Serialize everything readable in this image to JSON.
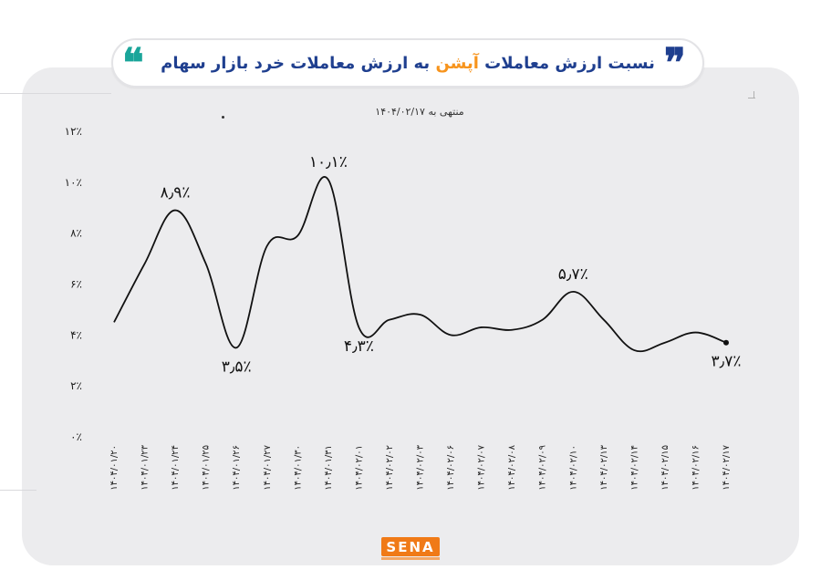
{
  "header": {
    "title_part1": "نسبت ارزش معاملات ",
    "title_highlight": "آپشن",
    "title_part2": " به ارزش معاملات خرد بازار سهام",
    "quote_right": "❞",
    "quote_left": "❝",
    "colors": {
      "title": "#1f3f8f",
      "highlight": "#f7941d",
      "quote_right": "#1f3f8f",
      "quote_left": "#1aa59a"
    }
  },
  "subtitle": "منتهی به ۱۴۰۴/۰۲/۱۷",
  "logo": {
    "text": "SENA",
    "color": "#f07a17"
  },
  "chart_data": {
    "type": "line",
    "x": [
      "۱۴۰۴/۰۱/۲۰",
      "۱۴۰۴/۰۱/۲۳",
      "۱۴۰۴/۰۱/۲۴",
      "۱۴۰۴/۰۱/۲۵",
      "۱۴۰۴/۰۱/۲۶",
      "۱۴۰۴/۰۱/۲۷",
      "۱۴۰۴/۰۱/۳۰",
      "۱۴۰۴/۰۱/۳۱",
      "۱۴۰۴/۰۲/۰۱",
      "۱۴۰۴/۰۲/۰۲",
      "۱۴۰۴/۰۲/۰۳",
      "۱۴۰۴/۰۲/۰۶",
      "۱۴۰۴/۰۲/۰۷",
      "۱۴۰۴/۰۲/۰۸",
      "۱۴۰۴/۰۲/۰۹",
      "۱۴۰۴/۰۲/۱۰",
      "۱۴۰۴/۰۲/۱۳",
      "۱۴۰۴/۰۲/۱۴",
      "۱۴۰۴/۰۲/۱۵",
      "۱۴۰۴/۰۲/۱۶",
      "۱۴۰۴/۰۲/۱۷"
    ],
    "series": [
      {
        "values": [
          4.5,
          6.8,
          8.9,
          6.8,
          3.5,
          7.5,
          7.9,
          10.1,
          4.3,
          4.6,
          4.8,
          4.0,
          4.3,
          4.2,
          4.6,
          5.7,
          4.6,
          3.4,
          3.7,
          4.1,
          3.7
        ]
      }
    ],
    "yticks": [
      "۰٪",
      "۲٪",
      "۴٪",
      "۶٪",
      "۸٪",
      "۱۰٪",
      "۱۲٪"
    ],
    "ylim": [
      0,
      12
    ],
    "annotations": [
      {
        "index": 2,
        "text": "۸٫۹٪",
        "pos": "above"
      },
      {
        "index": 4,
        "text": "۳٫۵٪",
        "pos": "below"
      },
      {
        "index": 7,
        "text": "۱۰٫۱٪",
        "pos": "above"
      },
      {
        "index": 8,
        "text": "۴٫۳٪",
        "pos": "below"
      },
      {
        "index": 15,
        "text": "۵٫۷٪",
        "pos": "above"
      },
      {
        "index": 20,
        "text": "۳٫۷٪",
        "pos": "below"
      }
    ],
    "xlabel": "",
    "ylabel": "",
    "grid": false,
    "legend": "none",
    "line_color": "#111111"
  }
}
